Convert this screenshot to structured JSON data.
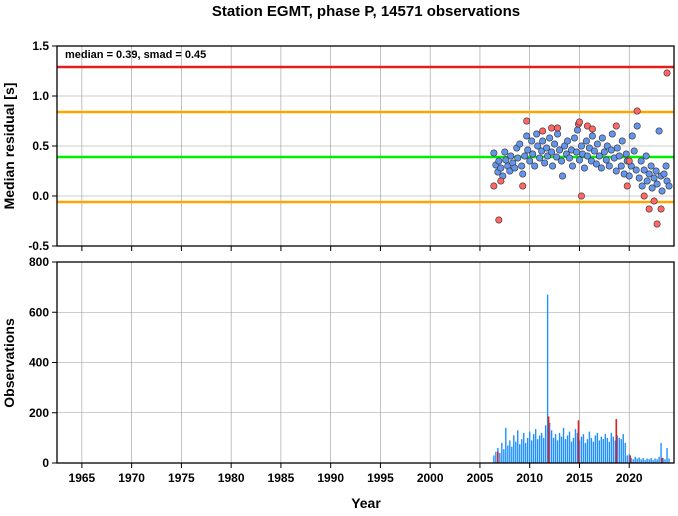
{
  "chart_data": [
    {
      "type": "scatter",
      "title": "Station EGMT, phase P, 14571 observations",
      "ylabel": "Median residual [s]",
      "annotation": "median = 0.39, smad = 0.45",
      "xlim": [
        1962.5,
        2024.5
      ],
      "ylim": [
        -0.5,
        1.5
      ],
      "yticks": [
        "-0.5",
        "0.0",
        "0.5",
        "1.0",
        "1.5"
      ],
      "grid": true,
      "reference_lines": [
        {
          "value": 1.29,
          "color": "#e02020"
        },
        {
          "value": 0.84,
          "color": "#ffa500"
        },
        {
          "value": 0.39,
          "color": "#00ee00"
        },
        {
          "value": -0.06,
          "color": "#ffa500"
        }
      ],
      "series": [
        {
          "color": "#6495ed",
          "points": [
            [
              2006.4,
              0.43
            ],
            [
              2006.6,
              0.31
            ],
            [
              2006.8,
              0.24
            ],
            [
              2006.9,
              0.35
            ],
            [
              2007.1,
              0.28
            ],
            [
              2007.3,
              0.2
            ],
            [
              2007.5,
              0.44
            ],
            [
              2007.6,
              0.36
            ],
            [
              2007.8,
              0.3
            ],
            [
              2008.0,
              0.25
            ],
            [
              2008.1,
              0.4
            ],
            [
              2008.3,
              0.33
            ],
            [
              2008.5,
              0.28
            ],
            [
              2008.7,
              0.48
            ],
            [
              2008.8,
              0.38
            ],
            [
              2009.0,
              0.52
            ],
            [
              2009.2,
              0.3
            ],
            [
              2009.3,
              0.22
            ],
            [
              2009.5,
              0.4
            ],
            [
              2009.7,
              0.6
            ],
            [
              2009.8,
              0.46
            ],
            [
              2010.0,
              0.35
            ],
            [
              2010.2,
              0.55
            ],
            [
              2010.3,
              0.42
            ],
            [
              2010.5,
              0.3
            ],
            [
              2010.7,
              0.62
            ],
            [
              2010.8,
              0.5
            ],
            [
              2011.0,
              0.38
            ],
            [
              2011.2,
              0.45
            ],
            [
              2011.3,
              0.55
            ],
            [
              2011.5,
              0.33
            ],
            [
              2011.7,
              0.48
            ],
            [
              2011.8,
              0.4
            ],
            [
              2012.0,
              0.58
            ],
            [
              2012.2,
              0.44
            ],
            [
              2012.3,
              0.3
            ],
            [
              2012.5,
              0.52
            ],
            [
              2012.7,
              0.39
            ],
            [
              2012.8,
              0.62
            ],
            [
              2013.0,
              0.46
            ],
            [
              2013.2,
              0.35
            ],
            [
              2013.3,
              0.2
            ],
            [
              2013.5,
              0.5
            ],
            [
              2013.7,
              0.42
            ],
            [
              2013.8,
              0.55
            ],
            [
              2014.0,
              0.38
            ],
            [
              2014.2,
              0.46
            ],
            [
              2014.3,
              0.3
            ],
            [
              2014.5,
              0.58
            ],
            [
              2014.7,
              0.44
            ],
            [
              2014.8,
              0.66
            ],
            [
              2015.0,
              0.36
            ],
            [
              2015.2,
              0.5
            ],
            [
              2015.3,
              0.42
            ],
            [
              2015.5,
              0.28
            ],
            [
              2015.7,
              0.55
            ],
            [
              2015.8,
              0.4
            ],
            [
              2016.0,
              0.48
            ],
            [
              2016.2,
              0.35
            ],
            [
              2016.3,
              0.6
            ],
            [
              2016.5,
              0.45
            ],
            [
              2016.7,
              0.32
            ],
            [
              2016.8,
              0.52
            ],
            [
              2017.0,
              0.4
            ],
            [
              2017.2,
              0.28
            ],
            [
              2017.3,
              0.58
            ],
            [
              2017.5,
              0.44
            ],
            [
              2017.7,
              0.36
            ],
            [
              2017.8,
              0.5
            ],
            [
              2018.0,
              0.3
            ],
            [
              2018.2,
              0.46
            ],
            [
              2018.3,
              0.62
            ],
            [
              2018.5,
              0.38
            ],
            [
              2018.7,
              0.25
            ],
            [
              2018.8,
              0.48
            ],
            [
              2019.0,
              0.4
            ],
            [
              2019.2,
              0.3
            ],
            [
              2019.3,
              0.55
            ],
            [
              2019.5,
              0.22
            ],
            [
              2019.7,
              0.42
            ],
            [
              2019.8,
              0.35
            ],
            [
              2020.0,
              0.2
            ],
            [
              2020.2,
              0.3
            ],
            [
              2020.3,
              0.6
            ],
            [
              2020.5,
              0.45
            ],
            [
              2020.7,
              0.26
            ],
            [
              2020.8,
              0.7
            ],
            [
              2021.0,
              0.18
            ],
            [
              2021.2,
              0.35
            ],
            [
              2021.3,
              0.1
            ],
            [
              2021.5,
              0.26
            ],
            [
              2021.7,
              0.4
            ],
            [
              2021.8,
              0.15
            ],
            [
              2022.0,
              0.22
            ],
            [
              2022.2,
              0.3
            ],
            [
              2022.3,
              0.08
            ],
            [
              2022.5,
              0.18
            ],
            [
              2022.7,
              0.25
            ],
            [
              2022.8,
              0.12
            ],
            [
              2023.0,
              0.65
            ],
            [
              2023.2,
              0.2
            ],
            [
              2023.3,
              0.05
            ],
            [
              2023.5,
              0.22
            ],
            [
              2023.7,
              0.3
            ],
            [
              2023.8,
              0.15
            ],
            [
              2024.0,
              0.1
            ]
          ]
        },
        {
          "color": "#ff6666",
          "points": [
            [
              2006.4,
              0.1
            ],
            [
              2006.9,
              -0.24
            ],
            [
              2007.1,
              0.15
            ],
            [
              2009.3,
              0.1
            ],
            [
              2009.7,
              0.75
            ],
            [
              2011.3,
              0.65
            ],
            [
              2012.2,
              0.68
            ],
            [
              2012.8,
              0.68
            ],
            [
              2014.9,
              0.72
            ],
            [
              2015.0,
              0.74
            ],
            [
              2015.2,
              0.0
            ],
            [
              2015.8,
              0.7
            ],
            [
              2016.3,
              0.67
            ],
            [
              2018.7,
              0.7
            ],
            [
              2019.8,
              0.1
            ],
            [
              2020.0,
              0.35
            ],
            [
              2020.8,
              0.85
            ],
            [
              2021.5,
              0.0
            ],
            [
              2022.0,
              -0.13
            ],
            [
              2022.5,
              -0.05
            ],
            [
              2022.8,
              -0.28
            ],
            [
              2023.2,
              -0.13
            ],
            [
              2023.8,
              1.23
            ]
          ]
        }
      ]
    },
    {
      "type": "bar",
      "ylabel": "Observations",
      "xlabel": "Year",
      "xlim": [
        1962.5,
        2024.5
      ],
      "ylim": [
        0,
        800
      ],
      "yticks": [
        "0",
        "200",
        "400",
        "600",
        "800"
      ],
      "xticks": [
        "1965",
        "1970",
        "1975",
        "1980",
        "1985",
        "1990",
        "1995",
        "2000",
        "2005",
        "2010",
        "2015",
        "2020"
      ],
      "grid": true,
      "bar_color": "#1e90ff",
      "bars": [
        [
          2006.4,
          30
        ],
        [
          2006.6,
          45
        ],
        [
          2006.8,
          60
        ],
        [
          2007.0,
          40
        ],
        [
          2007.2,
          80
        ],
        [
          2007.4,
          55
        ],
        [
          2007.6,
          140
        ],
        [
          2007.8,
          70
        ],
        [
          2008.0,
          90
        ],
        [
          2008.2,
          65
        ],
        [
          2008.4,
          110
        ],
        [
          2008.6,
          85
        ],
        [
          2008.8,
          130
        ],
        [
          2009.0,
          75
        ],
        [
          2009.2,
          95
        ],
        [
          2009.4,
          120
        ],
        [
          2009.6,
          80
        ],
        [
          2009.8,
          100
        ],
        [
          2010.0,
          125
        ],
        [
          2010.2,
          90
        ],
        [
          2010.4,
          115
        ],
        [
          2010.6,
          135
        ],
        [
          2010.8,
          95
        ],
        [
          2011.0,
          110
        ],
        [
          2011.2,
          120
        ],
        [
          2011.4,
          100
        ],
        [
          2011.6,
          150
        ],
        [
          2011.8,
          670
        ],
        [
          2012.0,
          160
        ],
        [
          2012.2,
          130
        ],
        [
          2012.4,
          100
        ],
        [
          2012.6,
          115
        ],
        [
          2012.8,
          90
        ],
        [
          2013.0,
          120
        ],
        [
          2013.2,
          105
        ],
        [
          2013.4,
          140
        ],
        [
          2013.6,
          95
        ],
        [
          2013.8,
          110
        ],
        [
          2014.0,
          125
        ],
        [
          2014.2,
          85
        ],
        [
          2014.4,
          100
        ],
        [
          2014.6,
          135
        ],
        [
          2014.8,
          120
        ],
        [
          2015.0,
          90
        ],
        [
          2015.2,
          105
        ],
        [
          2015.4,
          115
        ],
        [
          2015.6,
          80
        ],
        [
          2015.8,
          95
        ],
        [
          2016.0,
          125
        ],
        [
          2016.2,
          100
        ],
        [
          2016.4,
          85
        ],
        [
          2016.6,
          110
        ],
        [
          2016.8,
          120
        ],
        [
          2017.0,
          90
        ],
        [
          2017.2,
          105
        ],
        [
          2017.4,
          95
        ],
        [
          2017.6,
          115
        ],
        [
          2017.8,
          100
        ],
        [
          2018.0,
          85
        ],
        [
          2018.2,
          120
        ],
        [
          2018.4,
          105
        ],
        [
          2018.6,
          90
        ],
        [
          2018.8,
          110
        ],
        [
          2019.0,
          100
        ],
        [
          2019.2,
          95
        ],
        [
          2019.4,
          115
        ],
        [
          2019.6,
          80
        ],
        [
          2019.8,
          30
        ],
        [
          2020.0,
          35
        ],
        [
          2020.2,
          20
        ],
        [
          2020.4,
          15
        ],
        [
          2020.6,
          25
        ],
        [
          2020.8,
          18
        ],
        [
          2021.0,
          22
        ],
        [
          2021.2,
          15
        ],
        [
          2021.4,
          20
        ],
        [
          2021.6,
          12
        ],
        [
          2021.8,
          18
        ],
        [
          2022.0,
          15
        ],
        [
          2022.2,
          20
        ],
        [
          2022.4,
          12
        ],
        [
          2022.6,
          18
        ],
        [
          2022.8,
          15
        ],
        [
          2023.0,
          25
        ],
        [
          2023.2,
          80
        ],
        [
          2023.4,
          20
        ],
        [
          2023.6,
          15
        ],
        [
          2023.8,
          60
        ],
        [
          2024.0,
          18
        ]
      ],
      "highlight_color": "#e02020",
      "highlight_bars": [
        [
          2006.8,
          45
        ],
        [
          2011.9,
          185
        ],
        [
          2014.9,
          170
        ],
        [
          2018.7,
          175
        ],
        [
          2020.1,
          30
        ],
        [
          2023.3,
          20
        ]
      ]
    }
  ]
}
